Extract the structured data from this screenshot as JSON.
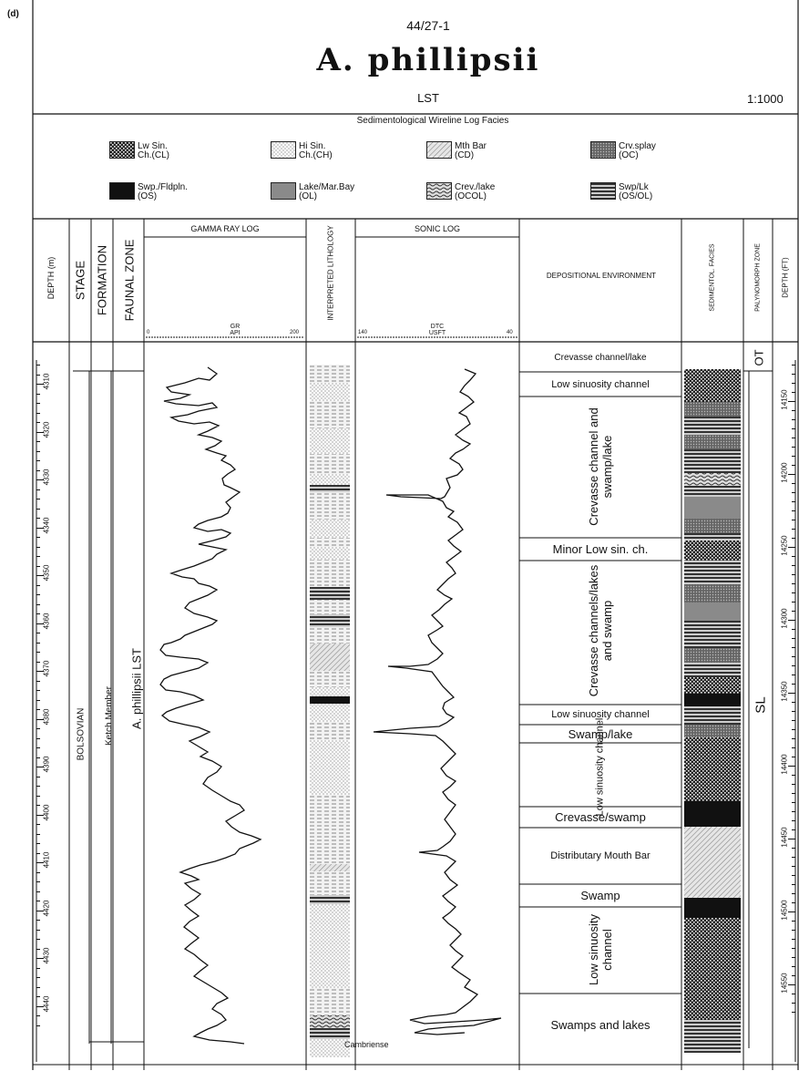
{
  "panel_label": "(d)",
  "header": {
    "well_id": "44/27-1",
    "title": "A. phillipsii",
    "system_tract": "LST",
    "scale": "1:1000"
  },
  "legend": {
    "title": "Sedimentological Wireline Log Facies",
    "items": [
      {
        "label1": "Lw Sin.",
        "label2": "Ch.(CL)",
        "pattern": "dots-dark"
      },
      {
        "label1": "Hi Sin.",
        "label2": "Ch.(CH)",
        "pattern": "dots-light"
      },
      {
        "label1": "Mth Bar",
        "label2": "(CD)",
        "pattern": "hatch"
      },
      {
        "label1": "Crv.splay",
        "label2": "(OC)",
        "pattern": "dots-mid"
      },
      {
        "label1": "Swp./Fldpln.",
        "label2": "(OS)",
        "pattern": "black"
      },
      {
        "label1": "Lake/Mar.Bay",
        "label2": "(OL)",
        "pattern": "grey"
      },
      {
        "label1": "Crev./lake",
        "label2": "(OCOL)",
        "pattern": "wavy"
      },
      {
        "label1": "Swp/Lk",
        "label2": "(OS/OL)",
        "pattern": "stripes"
      }
    ]
  },
  "columns": {
    "depth_m": "DEPTH (m)",
    "stage": "STAGE",
    "formation": "FORMATION",
    "faunal_zone": "FAUNAL ZONE",
    "gamma": "GAMMA RAY LOG",
    "gamma_curve": "GR",
    "gamma_unit": "API",
    "gamma_min": "0",
    "gamma_max": "200",
    "lithology": "INTERPRETED LITHOLOGY",
    "sonic": "SONIC LOG",
    "sonic_curve": "DTC",
    "sonic_unit": "USFT",
    "sonic_min": "140",
    "sonic_max": "40",
    "depositional": "DEPOSITIONAL ENVIRONMENT",
    "sed_facies": "SEDIMENTOL. FACIES",
    "palyno": "PALYNOMORPH ZONE",
    "depth_ft": "DEPTH (FT)"
  },
  "vertical_labels": {
    "stage": "BOLSOVIAN",
    "formation": "Ketch Member",
    "faunal_zone": "A. phillipsii LST",
    "palyno_upper": "OT",
    "palyno_lower": "SL"
  },
  "lithology_note": "Cambriense",
  "depth_m_ticks": [
    "4310",
    "4320",
    "4330",
    "4340",
    "4350",
    "4360",
    "4370",
    "4380",
    "4390",
    "4400",
    "4410",
    "4420",
    "4430",
    "4440"
  ],
  "depth_ft_ticks": [
    "14150",
    "14200",
    "14250",
    "14300",
    "14350",
    "14400",
    "14450",
    "14500",
    "14550"
  ],
  "depositional_environments": [
    {
      "name": "Crevasse channel/lake"
    },
    {
      "name": "Low sinuosity channel"
    },
    {
      "name": "Crevasse channel and swamp/lake"
    },
    {
      "name": "Minor Low sin. ch."
    },
    {
      "name": "Crevasse channels/lakes and swamp"
    },
    {
      "name": "Low sinuosity channel"
    },
    {
      "name": "Swamp/lake"
    },
    {
      "name": "Low sinuosity channel"
    },
    {
      "name": "Crevasse/swamp"
    },
    {
      "name": "Distributary Mouth Bar"
    },
    {
      "name": "Swamp"
    },
    {
      "name": "Low sinuosity channel"
    },
    {
      "name": "Swamps and lakes"
    }
  ]
}
